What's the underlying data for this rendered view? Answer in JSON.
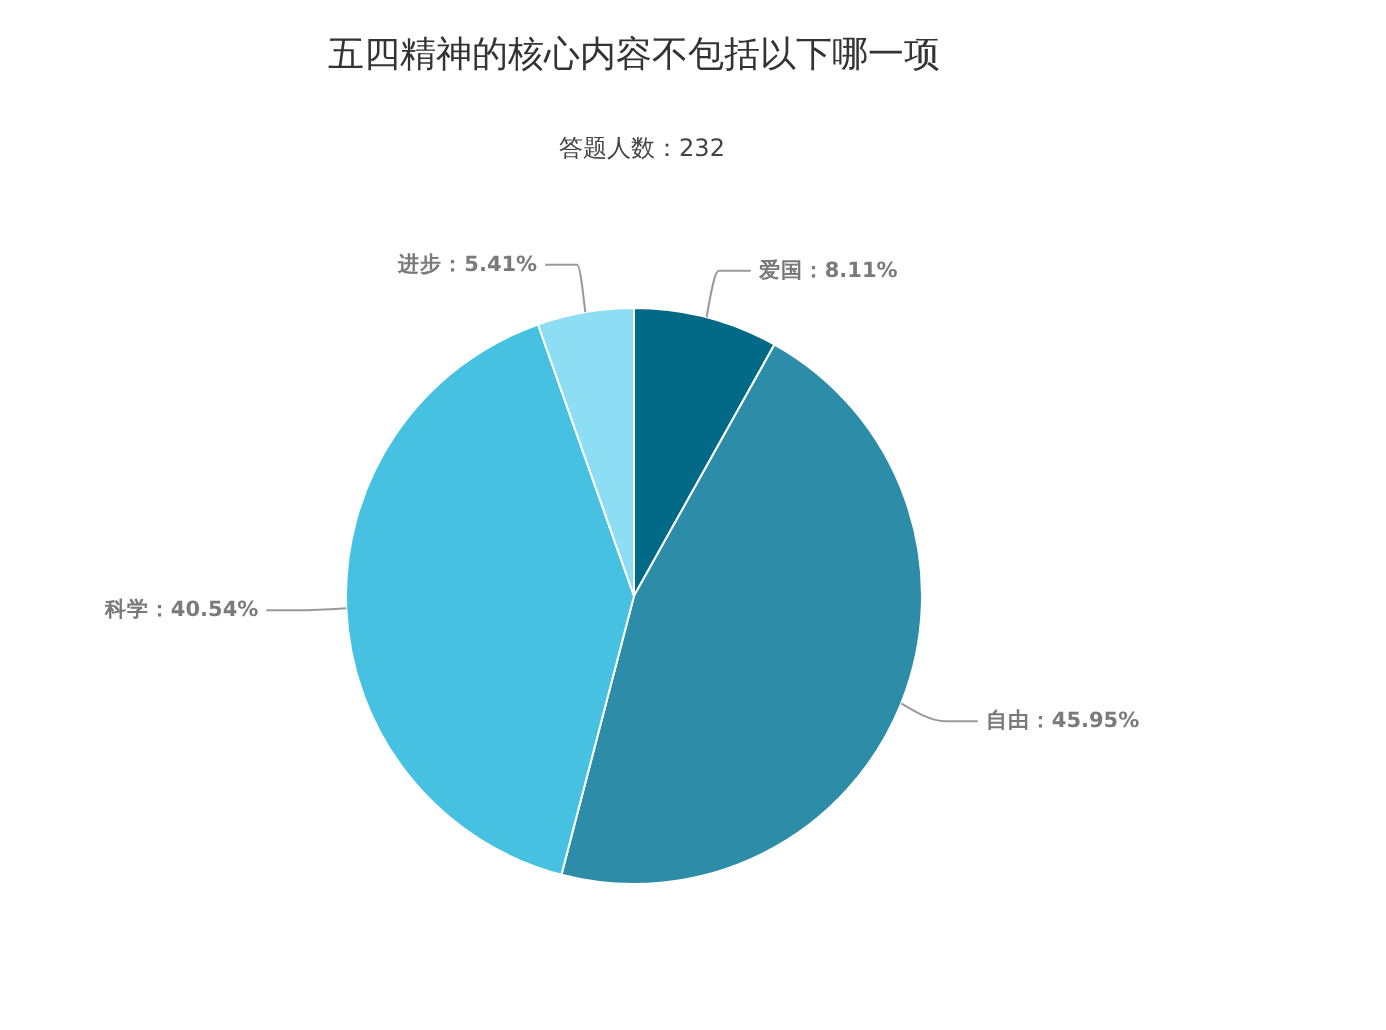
{
  "chart_data": {
    "type": "pie",
    "title": "五四精神的核心内容不包括以下哪一项",
    "subtitle": "答题人数：232",
    "categories": [
      "爱国",
      "自由",
      "科学",
      "进步"
    ],
    "values": [
      8.11,
      45.95,
      40.54,
      5.41
    ],
    "colors": [
      "#026a86",
      "#2d8ca7",
      "#47c1e2",
      "#8ddef5"
    ],
    "value_labels": [
      "：8.11%",
      "：45.95%",
      "：40.54%",
      "：5.41%"
    ]
  }
}
